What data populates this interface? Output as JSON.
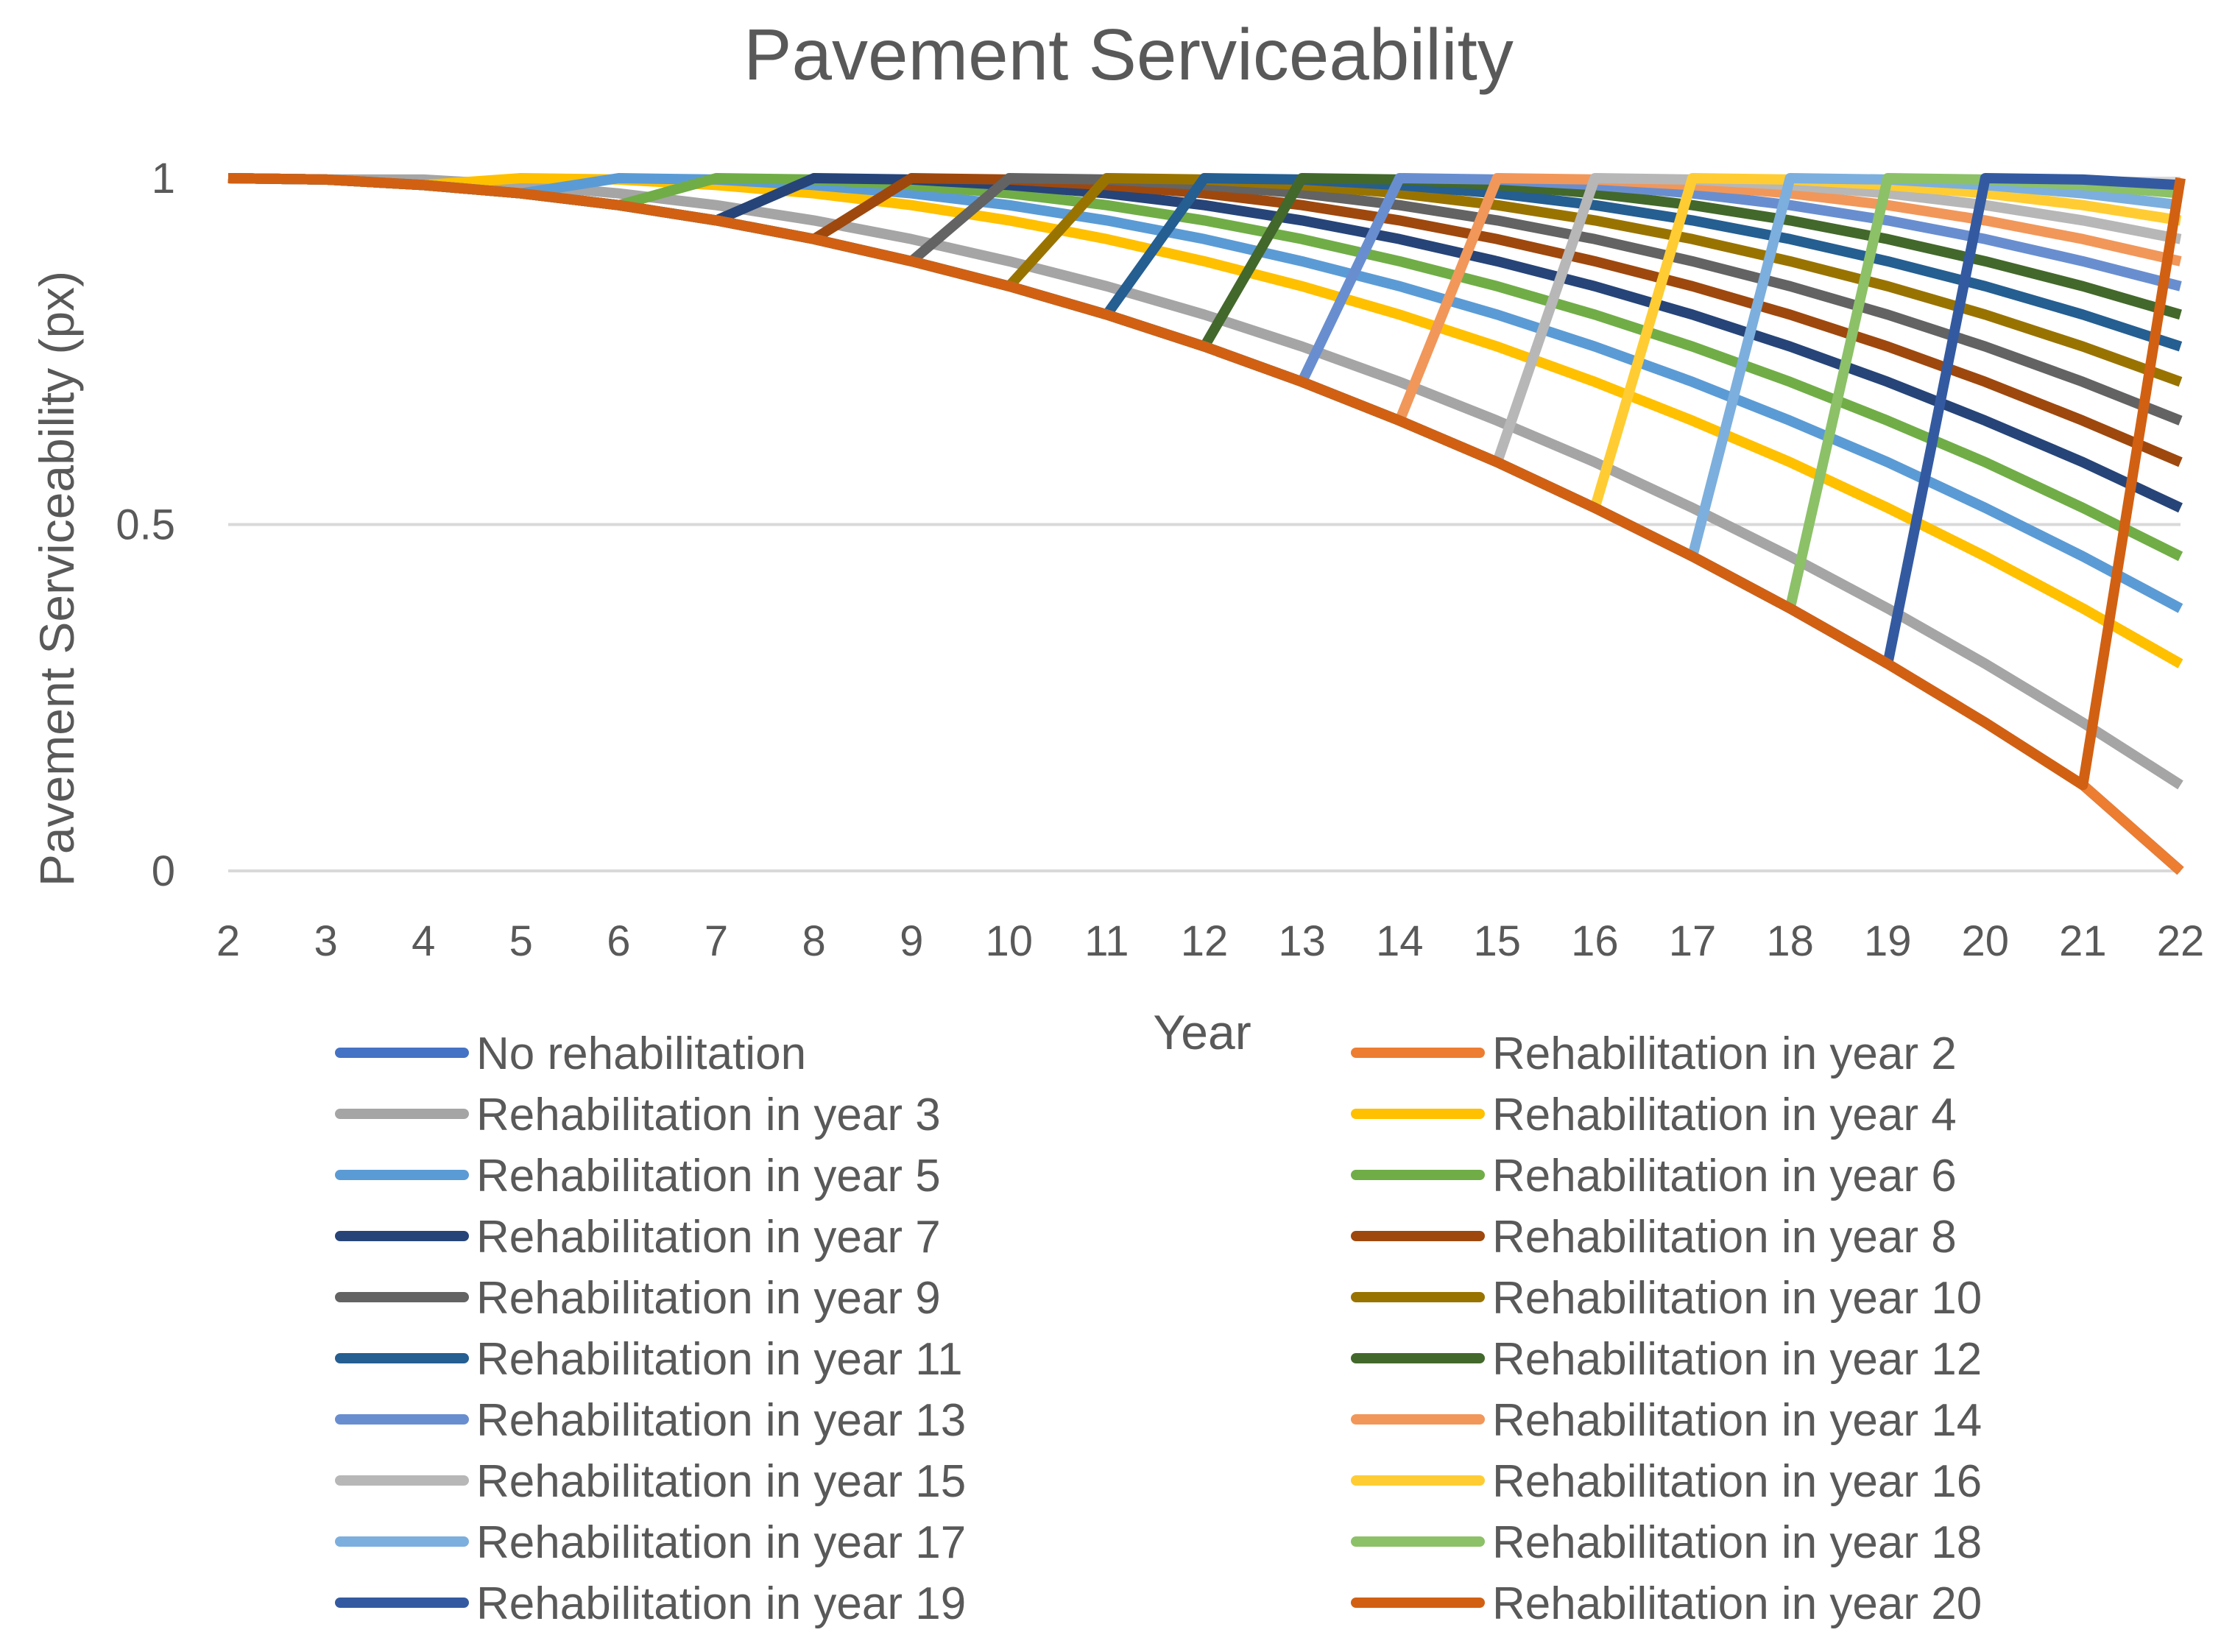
{
  "chart_data": {
    "type": "line",
    "title": "Pavement Serviceability",
    "xlabel": "Year",
    "ylabel": "Pavement Serviceability (px)",
    "x": [
      2,
      3,
      4,
      5,
      6,
      7,
      8,
      9,
      10,
      11,
      12,
      13,
      14,
      15,
      16,
      17,
      18,
      19,
      20,
      21,
      22
    ],
    "xlim": [
      2,
      22
    ],
    "ylim": [
      0,
      1
    ],
    "yticks": [
      "0",
      "0.5",
      "1"
    ],
    "xticks": [
      "2",
      "3",
      "4",
      "5",
      "6",
      "7",
      "8",
      "9",
      "10",
      "11",
      "12",
      "13",
      "14",
      "15",
      "16",
      "17",
      "18",
      "19",
      "20",
      "21",
      "22"
    ],
    "grid": true,
    "legend_position": "bottom",
    "base_curve": [
      1.0,
      0.998,
      0.99,
      0.978,
      0.961,
      0.939,
      0.912,
      0.88,
      0.844,
      0.803,
      0.757,
      0.706,
      0.65,
      0.59,
      0.524,
      0.454,
      0.379,
      0.299,
      0.214,
      0.124,
      0.0
    ],
    "series": [
      {
        "name": "No rehabilitation",
        "color": "#4472C4",
        "values": [
          1.0,
          0.998,
          0.99,
          0.978,
          0.961,
          0.939,
          0.912,
          0.88,
          0.844,
          0.803,
          0.757,
          0.706,
          0.65,
          0.59,
          0.524,
          0.454,
          0.379,
          0.299,
          0.214,
          0.124,
          0.0
        ]
      },
      {
        "name": "Rehabilitation in year 2",
        "color": "#ED7D31",
        "values": [
          1.0,
          0.998,
          0.99,
          0.978,
          0.961,
          0.939,
          0.912,
          0.88,
          0.844,
          0.803,
          0.757,
          0.706,
          0.65,
          0.59,
          0.524,
          0.454,
          0.379,
          0.299,
          0.214,
          0.124,
          0.0
        ]
      },
      {
        "name": "Rehabilitation in year 3",
        "color": "#A5A5A5",
        "values": [
          1.0,
          0.998,
          0.998,
          0.99,
          0.978,
          0.961,
          0.939,
          0.912,
          0.88,
          0.844,
          0.803,
          0.757,
          0.706,
          0.65,
          0.59,
          0.524,
          0.454,
          0.379,
          0.299,
          0.214,
          0.124
        ]
      },
      {
        "name": "Rehabilitation in year 4",
        "color": "#FFC000",
        "values": [
          1.0,
          0.998,
          0.99,
          1.0,
          0.998,
          0.99,
          0.978,
          0.961,
          0.939,
          0.912,
          0.88,
          0.844,
          0.803,
          0.757,
          0.706,
          0.65,
          0.59,
          0.524,
          0.454,
          0.379,
          0.299
        ]
      },
      {
        "name": "Rehabilitation in year 5",
        "color": "#5B9BD5",
        "values": [
          1.0,
          0.998,
          0.99,
          0.978,
          1.0,
          0.998,
          0.99,
          0.978,
          0.961,
          0.939,
          0.912,
          0.88,
          0.844,
          0.803,
          0.757,
          0.706,
          0.65,
          0.59,
          0.524,
          0.454,
          0.379
        ]
      },
      {
        "name": "Rehabilitation in year 6",
        "color": "#70AD47",
        "values": [
          1.0,
          0.998,
          0.99,
          0.978,
          0.961,
          1.0,
          0.998,
          0.99,
          0.978,
          0.961,
          0.939,
          0.912,
          0.88,
          0.844,
          0.803,
          0.757,
          0.706,
          0.65,
          0.59,
          0.524,
          0.454
        ]
      },
      {
        "name": "Rehabilitation in year 7",
        "color": "#264478",
        "values": [
          1.0,
          0.998,
          0.99,
          0.978,
          0.961,
          0.939,
          1.0,
          0.998,
          0.99,
          0.978,
          0.961,
          0.939,
          0.912,
          0.88,
          0.844,
          0.803,
          0.757,
          0.706,
          0.65,
          0.59,
          0.524
        ]
      },
      {
        "name": "Rehabilitation in year 8",
        "color": "#9E480E",
        "values": [
          1.0,
          0.998,
          0.99,
          0.978,
          0.961,
          0.939,
          0.912,
          1.0,
          0.998,
          0.99,
          0.978,
          0.961,
          0.939,
          0.912,
          0.88,
          0.844,
          0.803,
          0.757,
          0.706,
          0.65,
          0.59
        ]
      },
      {
        "name": "Rehabilitation in year 9",
        "color": "#636363",
        "values": [
          1.0,
          0.998,
          0.99,
          0.978,
          0.961,
          0.939,
          0.912,
          0.88,
          1.0,
          0.998,
          0.99,
          0.978,
          0.961,
          0.939,
          0.912,
          0.88,
          0.844,
          0.803,
          0.757,
          0.706,
          0.65
        ]
      },
      {
        "name": "Rehabilitation in year 10",
        "color": "#997300",
        "values": [
          1.0,
          0.998,
          0.99,
          0.978,
          0.961,
          0.939,
          0.912,
          0.88,
          0.844,
          1.0,
          0.998,
          0.99,
          0.978,
          0.961,
          0.939,
          0.912,
          0.88,
          0.844,
          0.803,
          0.757,
          0.706
        ]
      },
      {
        "name": "Rehabilitation in year 11",
        "color": "#255E91",
        "values": [
          1.0,
          0.998,
          0.99,
          0.978,
          0.961,
          0.939,
          0.912,
          0.88,
          0.844,
          0.803,
          1.0,
          0.998,
          0.99,
          0.978,
          0.961,
          0.939,
          0.912,
          0.88,
          0.844,
          0.803,
          0.757
        ]
      },
      {
        "name": "Rehabilitation in year 12",
        "color": "#43682B",
        "values": [
          1.0,
          0.998,
          0.99,
          0.978,
          0.961,
          0.939,
          0.912,
          0.88,
          0.844,
          0.803,
          0.757,
          1.0,
          0.998,
          0.99,
          0.978,
          0.961,
          0.939,
          0.912,
          0.88,
          0.844,
          0.803
        ]
      },
      {
        "name": "Rehabilitation in year 13",
        "color": "#698ED0",
        "values": [
          1.0,
          0.998,
          0.99,
          0.978,
          0.961,
          0.939,
          0.912,
          0.88,
          0.844,
          0.803,
          0.757,
          0.706,
          1.0,
          0.998,
          0.99,
          0.978,
          0.961,
          0.939,
          0.912,
          0.88,
          0.844
        ]
      },
      {
        "name": "Rehabilitation in year 14",
        "color": "#F1975A",
        "values": [
          1.0,
          0.998,
          0.99,
          0.978,
          0.961,
          0.939,
          0.912,
          0.88,
          0.844,
          0.803,
          0.757,
          0.706,
          0.65,
          1.0,
          0.998,
          0.99,
          0.978,
          0.961,
          0.939,
          0.912,
          0.88
        ]
      },
      {
        "name": "Rehabilitation in year 15",
        "color": "#B7B7B7",
        "values": [
          1.0,
          0.998,
          0.99,
          0.978,
          0.961,
          0.939,
          0.912,
          0.88,
          0.844,
          0.803,
          0.757,
          0.706,
          0.65,
          0.59,
          1.0,
          0.998,
          0.99,
          0.978,
          0.961,
          0.939,
          0.912
        ]
      },
      {
        "name": "Rehabilitation in year 16",
        "color": "#FFCD33",
        "values": [
          1.0,
          0.998,
          0.99,
          0.978,
          0.961,
          0.939,
          0.912,
          0.88,
          0.844,
          0.803,
          0.757,
          0.706,
          0.65,
          0.59,
          0.524,
          1.0,
          0.998,
          0.99,
          0.978,
          0.961,
          0.939
        ]
      },
      {
        "name": "Rehabilitation in year 17",
        "color": "#7CAFDD",
        "values": [
          1.0,
          0.998,
          0.99,
          0.978,
          0.961,
          0.939,
          0.912,
          0.88,
          0.844,
          0.803,
          0.757,
          0.706,
          0.65,
          0.59,
          0.524,
          0.454,
          1.0,
          0.998,
          0.99,
          0.978,
          0.961
        ]
      },
      {
        "name": "Rehabilitation in year 18",
        "color": "#8CC168",
        "values": [
          1.0,
          0.998,
          0.99,
          0.978,
          0.961,
          0.939,
          0.912,
          0.88,
          0.844,
          0.803,
          0.757,
          0.706,
          0.65,
          0.59,
          0.524,
          0.454,
          0.379,
          1.0,
          0.998,
          0.99,
          0.978
        ]
      },
      {
        "name": "Rehabilitation in year 19",
        "color": "#335AA1",
        "values": [
          1.0,
          0.998,
          0.99,
          0.978,
          0.961,
          0.939,
          0.912,
          0.88,
          0.844,
          0.803,
          0.757,
          0.706,
          0.65,
          0.59,
          0.524,
          0.454,
          0.379,
          0.299,
          1.0,
          0.998,
          0.99
        ]
      },
      {
        "name": "Rehabilitation in year 20",
        "color": "#D26012",
        "values": [
          1.0,
          0.998,
          0.99,
          0.978,
          0.961,
          0.939,
          0.912,
          0.88,
          0.844,
          0.803,
          0.757,
          0.706,
          0.65,
          0.59,
          0.524,
          0.454,
          0.379,
          0.299,
          0.214,
          0.124,
          1.0
        ]
      }
    ]
  }
}
